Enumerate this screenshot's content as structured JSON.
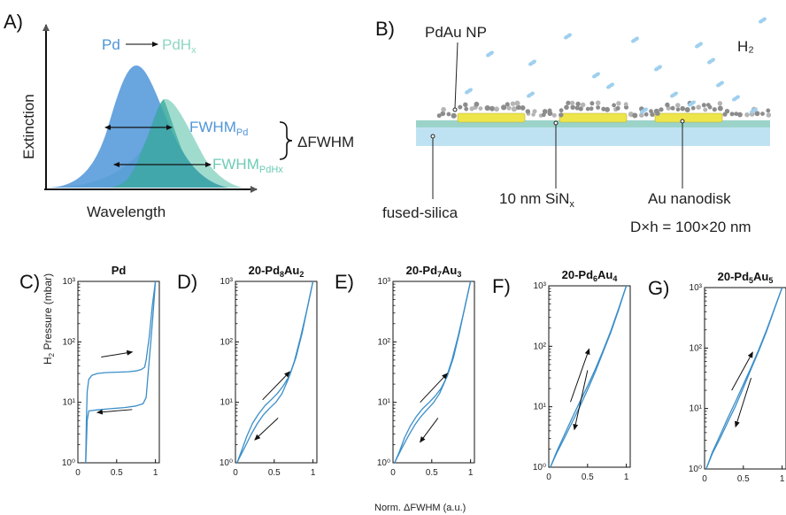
{
  "panel_a": {
    "letter": "A)",
    "pd_label": "Pd",
    "pdhx_label": "PdH",
    "pdhx_sub": "x",
    "fwhm_pd": "FWHM",
    "fwhm_pd_sub": "Pd",
    "fwhm_pdhx": "FWHM",
    "fwhm_pdhx_sub": "PdHx",
    "delta_fwhm": "ΔFWHM",
    "xlabel": "Wavelength",
    "ylabel": "Extinction"
  },
  "panel_b": {
    "letter": "B)",
    "np_label": "PdAu NP",
    "h2_label": "H₂",
    "substrate_label": "fused-silica",
    "sin_label": "10 nm SiN",
    "sin_sub": "x",
    "disk_label": "Au nanodisk",
    "disk_dims": "D×h = 100×20 nm"
  },
  "shared": {
    "ylabel_pre": "H",
    "ylabel_sub": "2",
    "ylabel_post": " Pressure (mbar)",
    "xlabel": "Norm. ΔFWHM (a.u.)",
    "yticks": [
      "10⁰",
      "10¹",
      "10²",
      "10³"
    ],
    "xticks": [
      "0",
      "0.5",
      "1"
    ],
    "line_color": "#3a8ec8"
  },
  "chart_data": [
    {
      "type": "line",
      "letter": "C)",
      "title": "Pd",
      "ylim": [
        1,
        1000
      ],
      "yscale": "log",
      "xlim": [
        0,
        1.05
      ],
      "series": [
        {
          "x": [
            0.1,
            0.11,
            0.12,
            0.14,
            0.18,
            0.25,
            0.35,
            0.5,
            0.65,
            0.75,
            0.82,
            0.86,
            0.88,
            0.92,
            0.96,
            1.0
          ],
          "y": [
            1,
            5,
            15,
            24,
            28,
            30,
            31,
            31.5,
            32,
            33,
            35,
            38,
            50,
            120,
            400,
            1000
          ]
        },
        {
          "x": [
            1.0,
            0.97,
            0.94,
            0.92,
            0.9,
            0.88,
            0.84,
            0.75,
            0.6,
            0.4,
            0.25,
            0.14,
            0.12,
            0.11,
            0.1
          ],
          "y": [
            1000,
            300,
            100,
            50,
            25,
            12,
            9.5,
            8.7,
            8.2,
            7.8,
            7.5,
            7.2,
            5,
            2,
            1
          ]
        }
      ]
    },
    {
      "type": "line",
      "letter": "D)",
      "title": "20-Pd",
      "title_parts": [
        "20-Pd",
        "8",
        "Au",
        "2"
      ],
      "ylim": [
        1,
        1000
      ],
      "yscale": "log",
      "xlim": [
        0,
        1.05
      ],
      "series": [
        {
          "x": [
            0.02,
            0.08,
            0.15,
            0.22,
            0.3,
            0.38,
            0.46,
            0.54,
            0.62,
            0.7,
            0.78,
            0.86,
            0.93,
            1.0
          ],
          "y": [
            1.0,
            1.6,
            2.8,
            4.5,
            6.5,
            8.8,
            11,
            14,
            19,
            28,
            55,
            140,
            380,
            1000
          ]
        },
        {
          "x": [
            1.0,
            0.92,
            0.84,
            0.76,
            0.68,
            0.6,
            0.52,
            0.44,
            0.36,
            0.28,
            0.2,
            0.12,
            0.05,
            0.02
          ],
          "y": [
            1000,
            330,
            120,
            48,
            24,
            14,
            10,
            8,
            6.2,
            4.4,
            2.9,
            1.8,
            1.2,
            1.0
          ]
        }
      ]
    },
    {
      "type": "line",
      "letter": "E)",
      "title": "20-Pd",
      "title_parts": [
        "20-Pd",
        "7",
        "Au",
        "3"
      ],
      "ylim": [
        1,
        1000
      ],
      "yscale": "log",
      "xlim": [
        0,
        1.05
      ],
      "series": [
        {
          "x": [
            0.02,
            0.08,
            0.15,
            0.22,
            0.3,
            0.38,
            0.46,
            0.54,
            0.62,
            0.7,
            0.78,
            0.86,
            0.93,
            1.0
          ],
          "y": [
            1.0,
            1.5,
            2.6,
            4.0,
            5.8,
            7.8,
            9.8,
            12.5,
            17,
            27,
            55,
            150,
            400,
            1000
          ]
        },
        {
          "x": [
            1.0,
            0.92,
            0.84,
            0.76,
            0.68,
            0.6,
            0.52,
            0.44,
            0.36,
            0.28,
            0.2,
            0.12,
            0.05,
            0.02
          ],
          "y": [
            1000,
            340,
            125,
            50,
            24,
            14,
            9.8,
            7.6,
            5.8,
            4.2,
            2.8,
            1.8,
            1.2,
            1.0
          ]
        }
      ]
    },
    {
      "type": "line",
      "letter": "F)",
      "title": "20-Pd",
      "title_parts": [
        "20-Pd",
        "6",
        "Au",
        "4"
      ],
      "ylim": [
        1,
        1000
      ],
      "yscale": "log",
      "xlim": [
        0,
        1.05
      ],
      "series": [
        {
          "x": [
            0.02,
            0.1,
            0.2,
            0.3,
            0.4,
            0.5,
            0.6,
            0.7,
            0.8,
            0.9,
            1.0
          ],
          "y": [
            1.0,
            1.8,
            3.4,
            6.5,
            12,
            22,
            42,
            85,
            180,
            420,
            1000
          ]
        },
        {
          "x": [
            1.0,
            0.9,
            0.8,
            0.7,
            0.6,
            0.5,
            0.4,
            0.3,
            0.2,
            0.1,
            0.02
          ],
          "y": [
            1000,
            400,
            170,
            80,
            38,
            19,
            10,
            5.5,
            3.0,
            1.7,
            1.0
          ]
        }
      ]
    },
    {
      "type": "line",
      "letter": "G)",
      "title": "20-Pd",
      "title_parts": [
        "20-Pd",
        "5",
        "Au",
        "5"
      ],
      "ylim": [
        1,
        1000
      ],
      "yscale": "log",
      "xlim": [
        0,
        1.05
      ],
      "series": [
        {
          "x": [
            0.02,
            0.1,
            0.2,
            0.3,
            0.4,
            0.5,
            0.6,
            0.7,
            0.8,
            0.9,
            1.0
          ],
          "y": [
            1.0,
            1.9,
            3.6,
            7.0,
            13,
            25,
            48,
            95,
            200,
            450,
            1000
          ]
        },
        {
          "x": [
            1.0,
            0.9,
            0.8,
            0.7,
            0.6,
            0.5,
            0.4,
            0.3,
            0.2,
            0.1,
            0.02
          ],
          "y": [
            1000,
            440,
            190,
            90,
            45,
            22,
            11,
            6,
            3.2,
            1.8,
            1.0
          ]
        }
      ]
    }
  ]
}
